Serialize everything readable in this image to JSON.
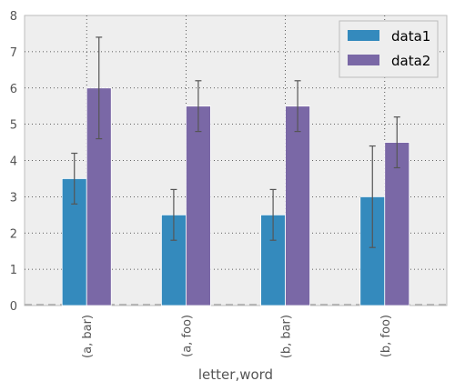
{
  "chart_data": {
    "type": "bar",
    "categories": [
      "(a, bar)",
      "(a, foo)",
      "(b, bar)",
      "(b, foo)"
    ],
    "series": [
      {
        "name": "data1",
        "values": [
          3.5,
          2.5,
          2.5,
          3.0
        ],
        "errors": [
          0.7,
          0.7,
          0.7,
          1.4
        ],
        "color": "#348abd"
      },
      {
        "name": "data2",
        "values": [
          6.0,
          5.5,
          5.5,
          4.5
        ],
        "errors": [
          1.4,
          0.7,
          0.7,
          0.7
        ],
        "color": "#7a68a6"
      }
    ],
    "xlabel": "letter,word",
    "ylabel": "",
    "ylim": [
      0,
      8
    ],
    "yticks": [
      "0",
      "1",
      "2",
      "3",
      "4",
      "5",
      "6",
      "7",
      "8"
    ],
    "grid": true,
    "legend_position": "top-right",
    "background_color": "#eeeeee",
    "errorbar_color": "#555555"
  }
}
